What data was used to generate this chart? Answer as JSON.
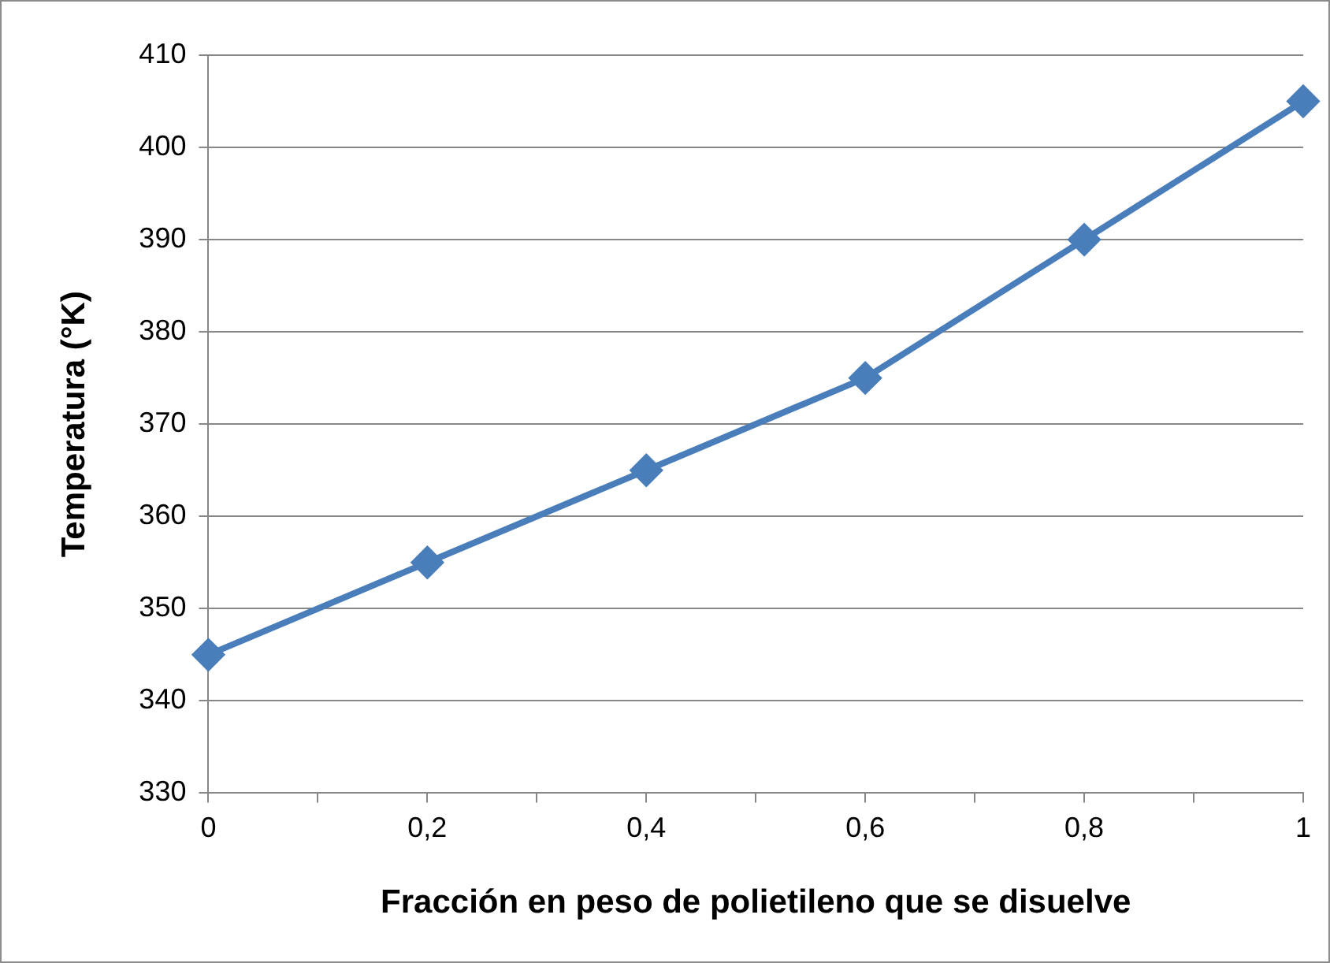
{
  "chart_data": {
    "type": "line",
    "xlabel": "Fracción en peso de polietileno que se disuelve",
    "ylabel": "Temperatura (°K)",
    "x": [
      0,
      0.2,
      0.4,
      0.6,
      0.8,
      1
    ],
    "series": [
      {
        "color": "#4a7ebb",
        "values": [
          345,
          355,
          365,
          375,
          390,
          405
        ]
      }
    ],
    "xlim": [
      0,
      1
    ],
    "xticks": [
      0,
      {
        "value": 0.1,
        "label": null
      },
      {
        "value": 0.2,
        "label": "0,2"
      },
      {
        "value": 0.3,
        "label": null
      },
      {
        "value": 0.4,
        "label": "0,4"
      },
      {
        "value": 0.5,
        "label": null
      },
      {
        "value": 0.6,
        "label": "0,6"
      },
      {
        "value": 0.7,
        "label": null
      },
      {
        "value": 0.8,
        "label": "0,8"
      },
      {
        "value": 0.9,
        "label": null
      },
      1
    ],
    "ylim": [
      330,
      410
    ],
    "yticks": [
      330,
      340,
      350,
      360,
      370,
      380,
      390,
      400,
      410
    ],
    "grid": "y",
    "legend": false,
    "marker": "diamond",
    "line_style": "solid"
  }
}
